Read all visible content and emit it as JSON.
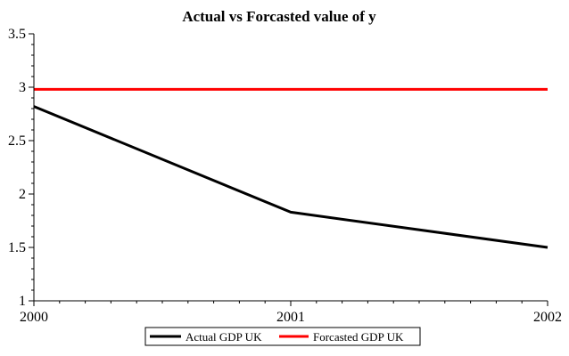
{
  "chart_data": {
    "type": "line",
    "title": "Actual vs Forcasted value of y",
    "xlabel": "",
    "ylabel": "",
    "x": [
      2000,
      2001,
      2002
    ],
    "x_tick_labels": [
      "2000",
      "2001",
      "2002"
    ],
    "y_tick_labels": [
      "1",
      "1.5",
      "2",
      "2.5",
      "3",
      "3.5"
    ],
    "y_ticks": [
      1,
      1.5,
      2,
      2.5,
      3,
      3.5
    ],
    "ylim": [
      1,
      3.5
    ],
    "xlim": [
      2000,
      2002
    ],
    "grid": false,
    "legend_position": "bottom-center",
    "series": [
      {
        "name": "Actual GDP UK",
        "color": "#000000",
        "values": [
          2.82,
          1.83,
          1.5
        ]
      },
      {
        "name": "Forcasted GDP UK",
        "color": "#ff0000",
        "values": [
          2.98,
          2.98,
          2.98
        ]
      }
    ]
  }
}
